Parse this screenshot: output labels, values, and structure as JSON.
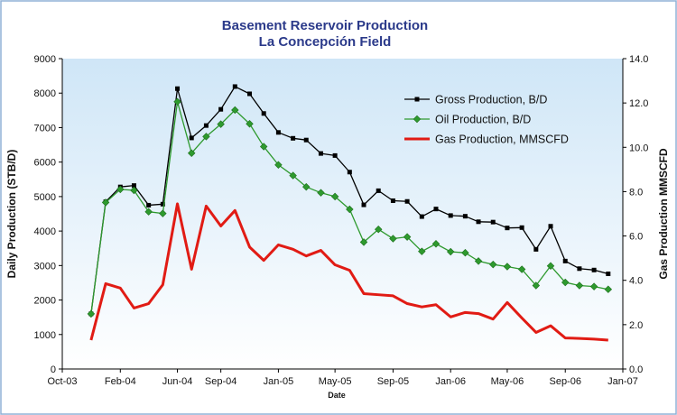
{
  "chart_data": {
    "type": "line",
    "title": "Basement Reservoir Production",
    "subtitle": "La Concepción Field",
    "xlabel": "Date",
    "ylabel": "Daily Production (STB/D)",
    "y2label": "Gas Production MMSCFD",
    "xlim": [
      "2003-10-01",
      "2007-01-01"
    ],
    "ylim": [
      0,
      9000
    ],
    "y2lim": [
      0,
      14
    ],
    "grid": false,
    "legend_position": "top-right",
    "x_ticks": [
      {
        "date": "2003-10-01",
        "label": "Oct-03"
      },
      {
        "date": "2004-02-01",
        "label": "Feb-04"
      },
      {
        "date": "2004-06-01",
        "label": "Jun-04"
      },
      {
        "date": "2004-09-01",
        "label": "Sep-04"
      },
      {
        "date": "2005-01-01",
        "label": "Jan-05"
      },
      {
        "date": "2005-05-01",
        "label": "May-05"
      },
      {
        "date": "2005-09-01",
        "label": "Sep-05"
      },
      {
        "date": "2006-01-01",
        "label": "Jan-06"
      },
      {
        "date": "2006-05-01",
        "label": "May-06"
      },
      {
        "date": "2006-09-01",
        "label": "Sep-06"
      },
      {
        "date": "2007-01-01",
        "label": "Jan-07"
      }
    ],
    "y_ticks": [
      "0",
      "1000",
      "2000",
      "3000",
      "4000",
      "5000",
      "6000",
      "7000",
      "8000",
      "9000"
    ],
    "y2_ticks": [
      "0.0",
      "2.0",
      "4.0",
      "6.0",
      "8.0",
      "10.0",
      "12.0",
      "14.0"
    ],
    "series": [
      {
        "name": "Gross Production, B/D",
        "axis": "left",
        "color": "#000000",
        "marker": "square",
        "points": [
          [
            "2003-12-01",
            1600
          ],
          [
            "2004-01-01",
            4850
          ],
          [
            "2004-02-01",
            5280
          ],
          [
            "2004-03-01",
            5320
          ],
          [
            "2004-04-01",
            4750
          ],
          [
            "2004-05-01",
            4780
          ],
          [
            "2004-06-01",
            8130
          ],
          [
            "2004-07-01",
            6700
          ],
          [
            "2004-08-01",
            7060
          ],
          [
            "2004-09-01",
            7530
          ],
          [
            "2004-10-01",
            8190
          ],
          [
            "2004-11-01",
            7980
          ],
          [
            "2004-12-01",
            7410
          ],
          [
            "2005-01-01",
            6860
          ],
          [
            "2005-02-01",
            6690
          ],
          [
            "2005-03-01",
            6640
          ],
          [
            "2005-04-01",
            6250
          ],
          [
            "2005-05-01",
            6190
          ],
          [
            "2005-06-01",
            5710
          ],
          [
            "2005-07-01",
            4760
          ],
          [
            "2005-08-01",
            5170
          ],
          [
            "2005-09-01",
            4880
          ],
          [
            "2005-10-01",
            4860
          ],
          [
            "2005-11-01",
            4420
          ],
          [
            "2005-12-01",
            4640
          ],
          [
            "2006-01-01",
            4450
          ],
          [
            "2006-02-01",
            4430
          ],
          [
            "2006-03-01",
            4270
          ],
          [
            "2006-04-01",
            4260
          ],
          [
            "2006-05-01",
            4090
          ],
          [
            "2006-06-01",
            4100
          ],
          [
            "2006-07-01",
            3470
          ],
          [
            "2006-08-01",
            4140
          ],
          [
            "2006-09-01",
            3130
          ],
          [
            "2006-10-01",
            2910
          ],
          [
            "2006-11-01",
            2870
          ],
          [
            "2006-12-01",
            2760
          ]
        ]
      },
      {
        "name": "Oil Production, B/D",
        "axis": "left",
        "color": "#2e9a2e",
        "marker": "diamond",
        "points": [
          [
            "2003-12-01",
            1600
          ],
          [
            "2004-01-01",
            4830
          ],
          [
            "2004-02-01",
            5210
          ],
          [
            "2004-03-01",
            5180
          ],
          [
            "2004-04-01",
            4560
          ],
          [
            "2004-05-01",
            4510
          ],
          [
            "2004-06-01",
            7750
          ],
          [
            "2004-07-01",
            6260
          ],
          [
            "2004-08-01",
            6740
          ],
          [
            "2004-09-01",
            7100
          ],
          [
            "2004-10-01",
            7510
          ],
          [
            "2004-11-01",
            7110
          ],
          [
            "2004-12-01",
            6450
          ],
          [
            "2005-01-01",
            5920
          ],
          [
            "2005-02-01",
            5610
          ],
          [
            "2005-03-01",
            5280
          ],
          [
            "2005-04-01",
            5110
          ],
          [
            "2005-05-01",
            5000
          ],
          [
            "2005-06-01",
            4630
          ],
          [
            "2005-07-01",
            3680
          ],
          [
            "2005-08-01",
            4050
          ],
          [
            "2005-09-01",
            3780
          ],
          [
            "2005-10-01",
            3830
          ],
          [
            "2005-11-01",
            3410
          ],
          [
            "2005-12-01",
            3630
          ],
          [
            "2006-01-01",
            3400
          ],
          [
            "2006-02-01",
            3370
          ],
          [
            "2006-03-01",
            3130
          ],
          [
            "2006-04-01",
            3030
          ],
          [
            "2006-05-01",
            2970
          ],
          [
            "2006-06-01",
            2890
          ],
          [
            "2006-07-01",
            2420
          ],
          [
            "2006-08-01",
            2990
          ],
          [
            "2006-09-01",
            2510
          ],
          [
            "2006-10-01",
            2420
          ],
          [
            "2006-11-01",
            2390
          ],
          [
            "2006-12-01",
            2310
          ]
        ]
      },
      {
        "name": "Gas Production, MMSCFD",
        "axis": "right",
        "color": "#e11b14",
        "marker": "none",
        "points": [
          [
            "2003-12-01",
            1.3
          ],
          [
            "2004-01-01",
            3.85
          ],
          [
            "2004-02-01",
            3.65
          ],
          [
            "2004-03-01",
            2.75
          ],
          [
            "2004-04-01",
            2.95
          ],
          [
            "2004-05-01",
            3.8
          ],
          [
            "2004-06-01",
            7.45
          ],
          [
            "2004-07-01",
            4.5
          ],
          [
            "2004-08-01",
            7.35
          ],
          [
            "2004-09-01",
            6.45
          ],
          [
            "2004-10-01",
            7.15
          ],
          [
            "2004-11-01",
            5.5
          ],
          [
            "2004-12-01",
            4.9
          ],
          [
            "2005-01-01",
            5.6
          ],
          [
            "2005-02-01",
            5.4
          ],
          [
            "2005-03-01",
            5.1
          ],
          [
            "2005-04-01",
            5.35
          ],
          [
            "2005-05-01",
            4.7
          ],
          [
            "2005-06-01",
            4.45
          ],
          [
            "2005-07-01",
            3.4
          ],
          [
            "2005-08-01",
            3.35
          ],
          [
            "2005-09-01",
            3.3
          ],
          [
            "2005-10-01",
            2.95
          ],
          [
            "2005-11-01",
            2.8
          ],
          [
            "2005-12-01",
            2.9
          ],
          [
            "2006-01-01",
            2.35
          ],
          [
            "2006-02-01",
            2.55
          ],
          [
            "2006-03-01",
            2.5
          ],
          [
            "2006-04-01",
            2.25
          ],
          [
            "2006-05-01",
            3.0
          ],
          [
            "2006-06-01",
            2.3
          ],
          [
            "2006-07-01",
            1.65
          ],
          [
            "2006-08-01",
            1.95
          ],
          [
            "2006-09-01",
            1.4
          ],
          [
            "2006-10-01",
            1.38
          ],
          [
            "2006-11-01",
            1.35
          ],
          [
            "2006-12-01",
            1.3
          ]
        ]
      }
    ]
  },
  "colors": {
    "plot_gradient_top": "#cfe6f7",
    "plot_gradient_bottom": "#ffffff",
    "title": "#2b3a8a",
    "frame": "#8fb0d6"
  }
}
